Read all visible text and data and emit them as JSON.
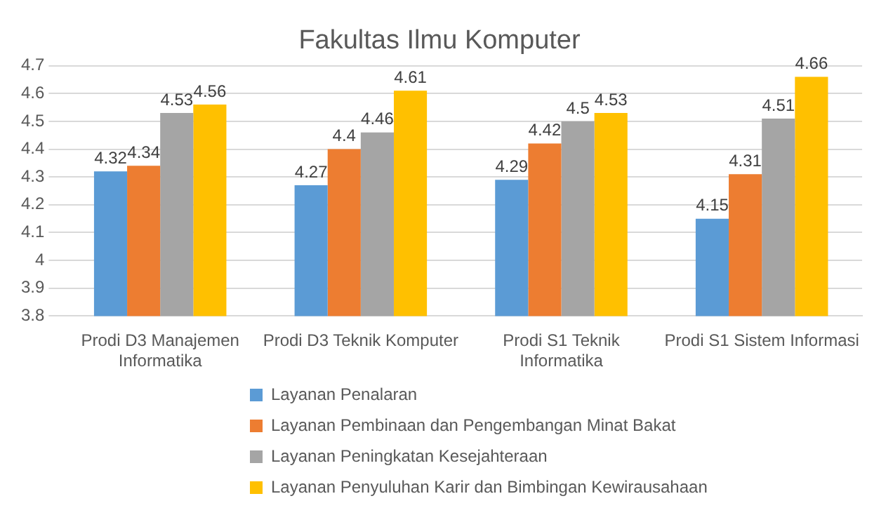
{
  "chart_data": {
    "type": "bar",
    "title": "Fakultas Ilmu Komputer",
    "categories": [
      "Prodi D3 Manajemen Informatika",
      "Prodi D3 Teknik Komputer",
      "Prodi S1 Teknik Informatika",
      "Prodi S1 Sistem Informasi"
    ],
    "series": [
      {
        "name": "Layanan Penalaran",
        "color": "#5b9bd5",
        "values": [
          4.32,
          4.27,
          4.29,
          4.15
        ]
      },
      {
        "name": "Layanan Pembinaan dan Pengembangan Minat Bakat",
        "color": "#ed7d31",
        "values": [
          4.34,
          4.4,
          4.42,
          4.31
        ]
      },
      {
        "name": "Layanan Peningkatan Kesejahteraan",
        "color": "#a5a5a5",
        "values": [
          4.53,
          4.46,
          4.5,
          4.51
        ]
      },
      {
        "name": "Layanan Penyuluhan Karir dan Bimbingan Kewirausahaan",
        "color": "#ffc000",
        "values": [
          4.56,
          4.61,
          4.53,
          4.66
        ]
      }
    ],
    "ylim": [
      3.8,
      4.7
    ],
    "yticks": [
      3.8,
      3.9,
      4,
      4.1,
      4.2,
      4.3,
      4.4,
      4.5,
      4.6,
      4.7
    ],
    "grid": "y",
    "legend": "bottom",
    "data_labels": true
  }
}
